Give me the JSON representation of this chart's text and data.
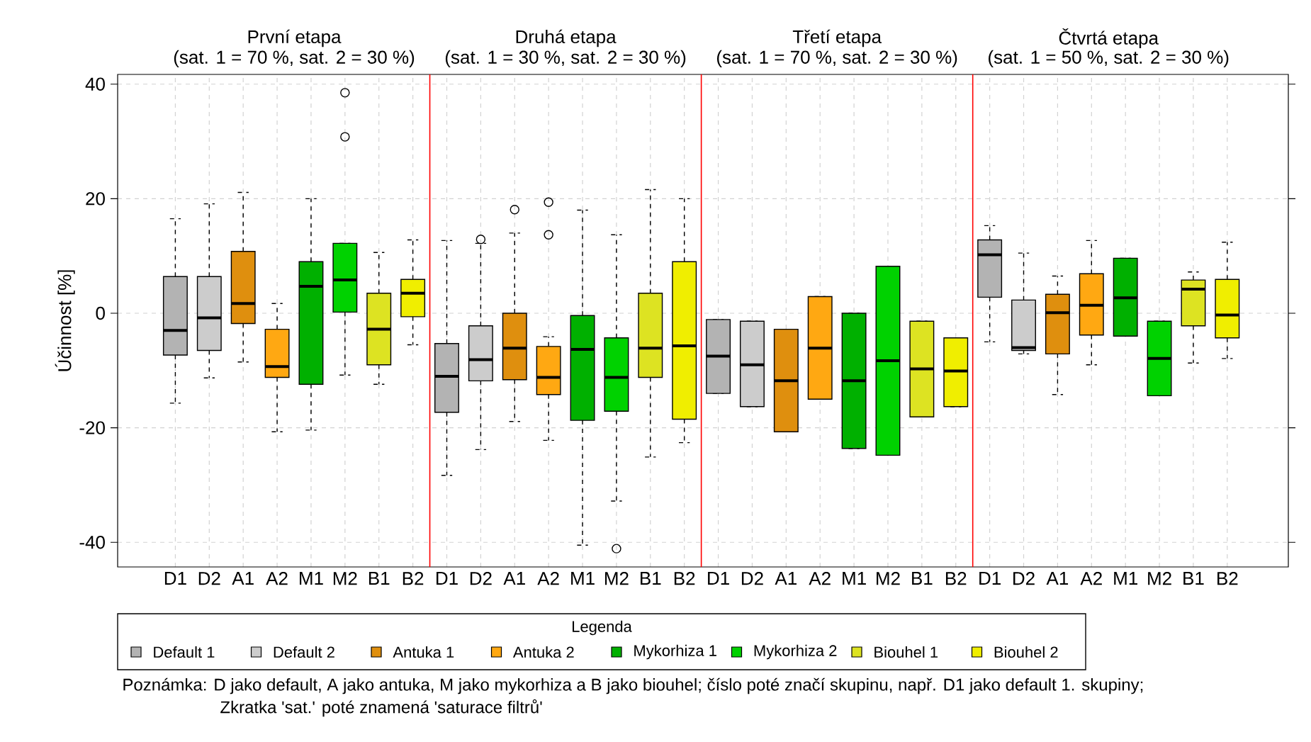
{
  "chart_data": {
    "type": "box",
    "ylabel": "Účinnost [%]",
    "legend_title": "Legenda",
    "legend": "bottom",
    "grid": true,
    "categories": [
      "D1",
      "D2",
      "A1",
      "A2",
      "M1",
      "M2",
      "B1",
      "B2",
      "D1",
      "D2",
      "A1",
      "A2",
      "M1",
      "M2",
      "B1",
      "B2",
      "D1",
      "D2",
      "A1",
      "A2",
      "M1",
      "M2",
      "B1",
      "B2",
      "D1",
      "D2",
      "A1",
      "A2",
      "M1",
      "M2",
      "B1",
      "B2"
    ],
    "ylim": [
      -44.3,
      41.7
    ],
    "yticks": [
      -40,
      -20,
      0,
      20,
      40
    ],
    "annotations": [
      "První etapa",
      "(sat. 1 = 70 %, sat. 2 = 30 %)",
      "Druhá etapa",
      "(sat. 1 = 30 %, sat. 2 = 30 %)",
      "Třetí etapa",
      "(sat. 1 = 70 %, sat. 2 = 30 %)",
      "Čtvrtá etapa",
      "(sat. 1 = 50 %, sat. 2 = 30 %)",
      "Poznámka: D jako default, A jako antuka, M jako mykorhiza a B jako biouhel; číslo poté značí skupinu, např. D1 jako default 1. skupiny;",
      "Zkratka 'sat.' poté znamená 'saturace filtrů'"
    ],
    "series": [
      {
        "name": "Default 1",
        "color": "#b3b3b3",
        "boxes": [
          {
            "low": -15.7,
            "q1": -7.3,
            "median": -3.0,
            "q3": 6.4,
            "high": 16.5
          },
          null,
          null,
          null,
          null,
          null,
          null,
          null,
          {
            "low": -28.3,
            "q1": -17.3,
            "median": -11.0,
            "q3": -5.3,
            "high": 12.7
          },
          null,
          null,
          null,
          null,
          null,
          null,
          null,
          {
            "low": -14.0,
            "q1": -14.0,
            "median": -7.5,
            "q3": -1.1,
            "high": -1.1
          },
          null,
          null,
          null,
          null,
          null,
          null,
          null,
          {
            "low": -5.0,
            "q1": 2.8,
            "median": 10.2,
            "q3": 12.8,
            "high": 15.3
          },
          null,
          null,
          null,
          null,
          null,
          null,
          null
        ]
      },
      {
        "name": "Default 2",
        "color": "#cccccc",
        "boxes": [
          null,
          {
            "low": -11.3,
            "q1": -6.5,
            "median": -0.8,
            "q3": 6.4,
            "high": 19.1
          },
          null,
          null,
          null,
          null,
          null,
          null,
          null,
          {
            "low": -23.8,
            "q1": -11.8,
            "median": -8.1,
            "q3": -2.2,
            "high": 12.2,
            "outliers": [
              12.9
            ]
          },
          null,
          null,
          null,
          null,
          null,
          null,
          null,
          {
            "low": -16.3,
            "q1": -16.3,
            "median": -9.0,
            "q3": -1.4,
            "high": -1.4
          },
          null,
          null,
          null,
          null,
          null,
          null,
          null,
          {
            "low": -7.1,
            "q1": -6.5,
            "median": -6.0,
            "q3": 2.3,
            "high": 10.5
          },
          null,
          null,
          null,
          null,
          null,
          null
        ]
      },
      {
        "name": "Antuka 1",
        "color": "#df8f0e",
        "boxes": [
          null,
          null,
          {
            "low": -8.5,
            "q1": -1.8,
            "median": 1.7,
            "q3": 10.8,
            "high": 21.1
          },
          null,
          null,
          null,
          null,
          null,
          null,
          null,
          {
            "low": -18.9,
            "q1": -11.6,
            "median": -6.1,
            "q3": 0.0,
            "high": 14.0,
            "outliers": [
              18.1
            ]
          },
          null,
          null,
          null,
          null,
          null,
          null,
          null,
          {
            "low": -20.7,
            "q1": -20.7,
            "median": -11.8,
            "q3": -2.8,
            "high": -2.8
          },
          null,
          null,
          null,
          null,
          null,
          null,
          null,
          {
            "low": -14.2,
            "q1": -7.1,
            "median": 0.1,
            "q3": 3.3,
            "high": 6.5
          },
          null,
          null,
          null,
          null,
          null
        ]
      },
      {
        "name": "Antuka 2",
        "color": "#ffa812",
        "boxes": [
          null,
          null,
          null,
          {
            "low": -20.7,
            "q1": -11.2,
            "median": -9.3,
            "q3": -2.8,
            "high": 1.7
          },
          null,
          null,
          null,
          null,
          null,
          null,
          null,
          {
            "low": -22.2,
            "q1": -14.2,
            "median": -11.2,
            "q3": -5.8,
            "high": -4.1,
            "outliers": [
              19.4,
              13.7
            ]
          },
          null,
          null,
          null,
          null,
          null,
          null,
          null,
          {
            "low": -15.0,
            "q1": -15.0,
            "median": -6.1,
            "q3": 2.9,
            "high": 2.9
          },
          null,
          null,
          null,
          null,
          null,
          null,
          null,
          {
            "low": -9.0,
            "q1": -3.8,
            "median": 1.4,
            "q3": 6.9,
            "high": 12.7
          },
          null,
          null,
          null,
          null
        ]
      },
      {
        "name": "Mykorhiza 1",
        "color": "#00b000",
        "boxes": [
          null,
          null,
          null,
          null,
          {
            "low": -20.4,
            "q1": -12.4,
            "median": 4.7,
            "q3": 9.0,
            "high": 20.0
          },
          null,
          null,
          null,
          null,
          null,
          null,
          null,
          {
            "low": -40.5,
            "q1": -18.7,
            "median": -6.3,
            "q3": -0.4,
            "high": 18.0
          },
          null,
          null,
          null,
          null,
          null,
          null,
          null,
          {
            "low": -23.6,
            "q1": -23.6,
            "median": -11.8,
            "q3": 0.0,
            "high": 0.0
          },
          null,
          null,
          null,
          null,
          null,
          null,
          null,
          {
            "low": -4.0,
            "q1": -4.0,
            "median": 2.7,
            "q3": 9.6,
            "high": 9.6
          },
          null,
          null,
          null
        ]
      },
      {
        "name": "Mykorhiza 2",
        "color": "#00d200",
        "boxes": [
          null,
          null,
          null,
          null,
          null,
          {
            "low": -10.8,
            "q1": 0.2,
            "median": 5.8,
            "q3": 12.2,
            "high": 12.2,
            "outliers": [
              38.5,
              30.8
            ]
          },
          null,
          null,
          null,
          null,
          null,
          null,
          null,
          {
            "low": -32.8,
            "q1": -17.1,
            "median": -11.2,
            "q3": -4.3,
            "high": 13.7,
            "outliers": [
              -41.1
            ]
          },
          null,
          null,
          null,
          null,
          null,
          null,
          null,
          {
            "low": -24.8,
            "q1": -24.8,
            "median": -8.3,
            "q3": 8.2,
            "high": 8.2
          },
          null,
          null,
          null,
          null,
          null,
          null,
          null,
          {
            "low": -14.4,
            "q1": -14.4,
            "median": -7.9,
            "q3": -1.4,
            "high": -1.4
          },
          null,
          null
        ]
      },
      {
        "name": "Biouhel 1",
        "color": "#dde322",
        "boxes": [
          null,
          null,
          null,
          null,
          null,
          null,
          {
            "low": -12.4,
            "q1": -9.0,
            "median": -2.8,
            "q3": 3.5,
            "high": 10.6
          },
          null,
          null,
          null,
          null,
          null,
          null,
          null,
          {
            "low": -25.1,
            "q1": -11.2,
            "median": -6.1,
            "q3": 3.5,
            "high": 21.6
          },
          null,
          null,
          null,
          null,
          null,
          null,
          null,
          {
            "low": -18.1,
            "q1": -18.1,
            "median": -9.7,
            "q3": -1.4,
            "high": -1.4
          },
          null,
          null,
          null,
          null,
          null,
          null,
          null,
          {
            "low": -8.7,
            "q1": -2.2,
            "median": 4.2,
            "q3": 5.8,
            "high": 7.2
          },
          null
        ]
      },
      {
        "name": "Biouhel 2",
        "color": "#f0ee00",
        "boxes": [
          null,
          null,
          null,
          null,
          null,
          null,
          null,
          {
            "low": -5.5,
            "q1": -0.6,
            "median": 3.5,
            "q3": 5.9,
            "high": 12.8
          },
          null,
          null,
          null,
          null,
          null,
          null,
          null,
          {
            "low": -22.6,
            "q1": -18.5,
            "median": -5.7,
            "q3": 9.0,
            "high": 20.0
          },
          null,
          null,
          null,
          null,
          null,
          null,
          null,
          {
            "low": -16.3,
            "q1": -16.3,
            "median": -10.1,
            "q3": -4.3,
            "high": -4.3
          },
          null,
          null,
          null,
          null,
          null,
          null,
          null,
          {
            "low": -7.9,
            "q1": -4.3,
            "median": -0.3,
            "q3": 5.9,
            "high": 12.4
          }
        ]
      }
    ]
  }
}
